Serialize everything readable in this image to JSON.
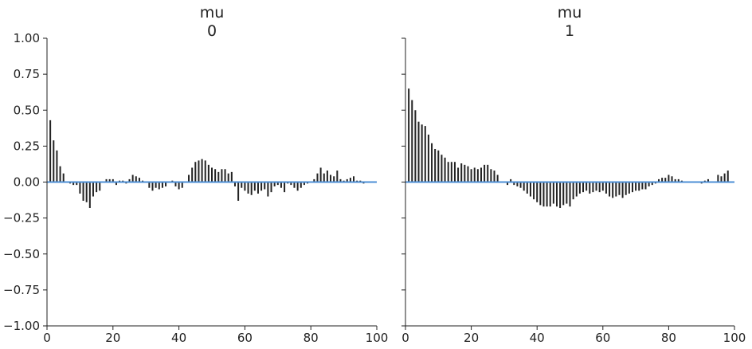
{
  "colors": {
    "bar": "#222222",
    "axis": "#222222",
    "zero_line": "#4c8fd6",
    "background": "#ffffff"
  },
  "chart_data": [
    {
      "type": "bar",
      "title": "mu",
      "subtitle": "0",
      "xlim": [
        0,
        100
      ],
      "ylim": [
        -1.0,
        1.0
      ],
      "xticks": [
        "0",
        "20",
        "40",
        "60",
        "80",
        "100"
      ],
      "yticks": [
        "1.00",
        "0.75",
        "0.50",
        "0.25",
        "0.00",
        "−0.25",
        "−0.50",
        "−0.75",
        "−1.00"
      ],
      "grid": false,
      "lags": [
        1,
        2,
        3,
        4,
        5,
        6,
        7,
        8,
        9,
        10,
        11,
        12,
        13,
        14,
        15,
        16,
        17,
        18,
        19,
        20,
        21,
        22,
        23,
        24,
        25,
        26,
        27,
        28,
        29,
        30,
        31,
        32,
        33,
        34,
        35,
        36,
        37,
        38,
        39,
        40,
        41,
        42,
        43,
        44,
        45,
        46,
        47,
        48,
        49,
        50,
        51,
        52,
        53,
        54,
        55,
        56,
        57,
        58,
        59,
        60,
        61,
        62,
        63,
        64,
        65,
        66,
        67,
        68,
        69,
        70,
        71,
        72,
        73,
        74,
        74.99,
        76,
        77,
        78,
        79,
        80,
        81,
        82,
        83,
        84,
        85,
        86,
        87,
        88,
        89,
        90,
        91,
        92,
        93,
        94,
        95,
        96,
        97,
        98,
        99
      ],
      "values": [
        0.43,
        0.29,
        0.22,
        0.11,
        0.06,
        0.0,
        -0.01,
        -0.02,
        -0.02,
        -0.08,
        -0.13,
        -0.14,
        -0.18,
        -0.1,
        -0.07,
        -0.06,
        0.0,
        0.02,
        0.02,
        0.02,
        -0.02,
        0.01,
        0.01,
        -0.01,
        0.02,
        0.05,
        0.04,
        0.03,
        0.01,
        0.0,
        -0.04,
        -0.06,
        -0.04,
        -0.05,
        -0.04,
        -0.03,
        0.0,
        0.01,
        -0.03,
        -0.05,
        -0.04,
        0.0,
        0.05,
        0.1,
        0.14,
        0.15,
        0.16,
        0.15,
        0.12,
        0.1,
        0.09,
        0.07,
        0.09,
        0.09,
        0.06,
        0.07,
        -0.03,
        -0.13,
        -0.04,
        -0.06,
        -0.08,
        -0.09,
        -0.06,
        -0.08,
        -0.06,
        -0.05,
        -0.1,
        -0.07,
        -0.03,
        -0.02,
        -0.04,
        -0.07,
        -0.01,
        -0.02,
        -0.04,
        -0.06,
        -0.04,
        -0.02,
        -0.01,
        0.0,
        0.02,
        0.06,
        0.1,
        0.06,
        0.08,
        0.05,
        0.04,
        0.08,
        0.02,
        0.01,
        0.02,
        0.03,
        0.04,
        0.01,
        0.01,
        -0.01,
        0.0,
        0.0,
        0.0
      ]
    },
    {
      "type": "bar",
      "title": "mu",
      "subtitle": "1",
      "xlim": [
        0,
        100
      ],
      "ylim": [
        -1.0,
        1.0
      ],
      "xticks": [
        "0",
        "20",
        "40",
        "60",
        "80",
        "100"
      ],
      "grid": false,
      "lags": [
        1,
        2,
        3,
        4,
        5,
        6,
        7,
        8,
        9,
        10,
        11,
        12,
        13,
        14,
        15,
        16,
        17,
        18,
        19,
        20,
        21,
        22,
        23,
        24,
        25,
        26,
        27,
        28,
        29,
        30,
        31,
        32,
        33,
        34,
        35,
        36,
        37,
        38,
        39,
        40,
        41,
        42,
        43,
        44,
        45,
        46,
        47,
        48,
        49,
        50,
        51,
        52,
        53,
        54,
        55,
        56,
        57,
        58,
        59,
        60,
        61,
        62,
        63,
        64,
        65,
        66,
        67,
        68,
        69,
        70,
        71,
        72,
        73,
        74,
        75,
        76,
        77,
        78,
        79,
        80,
        81,
        82,
        83,
        84,
        85,
        86,
        87,
        88,
        89,
        90,
        91,
        92,
        93,
        94,
        95,
        96,
        97,
        98,
        99
      ],
      "values": [
        0.65,
        0.57,
        0.5,
        0.42,
        0.4,
        0.39,
        0.33,
        0.27,
        0.23,
        0.22,
        0.19,
        0.17,
        0.14,
        0.14,
        0.14,
        0.1,
        0.13,
        0.12,
        0.11,
        0.09,
        0.1,
        0.09,
        0.1,
        0.12,
        0.12,
        0.09,
        0.08,
        0.05,
        0.0,
        0.0,
        -0.02,
        0.02,
        -0.02,
        -0.03,
        -0.04,
        -0.06,
        -0.08,
        -0.1,
        -0.12,
        -0.14,
        -0.16,
        -0.17,
        -0.17,
        -0.17,
        -0.15,
        -0.17,
        -0.18,
        -0.16,
        -0.15,
        -0.17,
        -0.12,
        -0.1,
        -0.08,
        -0.07,
        -0.06,
        -0.08,
        -0.07,
        -0.06,
        -0.07,
        -0.06,
        -0.08,
        -0.1,
        -0.11,
        -0.1,
        -0.09,
        -0.11,
        -0.09,
        -0.08,
        -0.07,
        -0.06,
        -0.06,
        -0.05,
        -0.05,
        -0.03,
        -0.02,
        -0.01,
        0.02,
        0.03,
        0.03,
        0.05,
        0.04,
        0.02,
        0.02,
        0.01,
        0.0,
        0.0,
        0.0,
        0.0,
        0.0,
        -0.01,
        0.01,
        0.02,
        0.0,
        0.0,
        0.05,
        0.04,
        0.06,
        0.08,
        0.0
      ]
    }
  ]
}
